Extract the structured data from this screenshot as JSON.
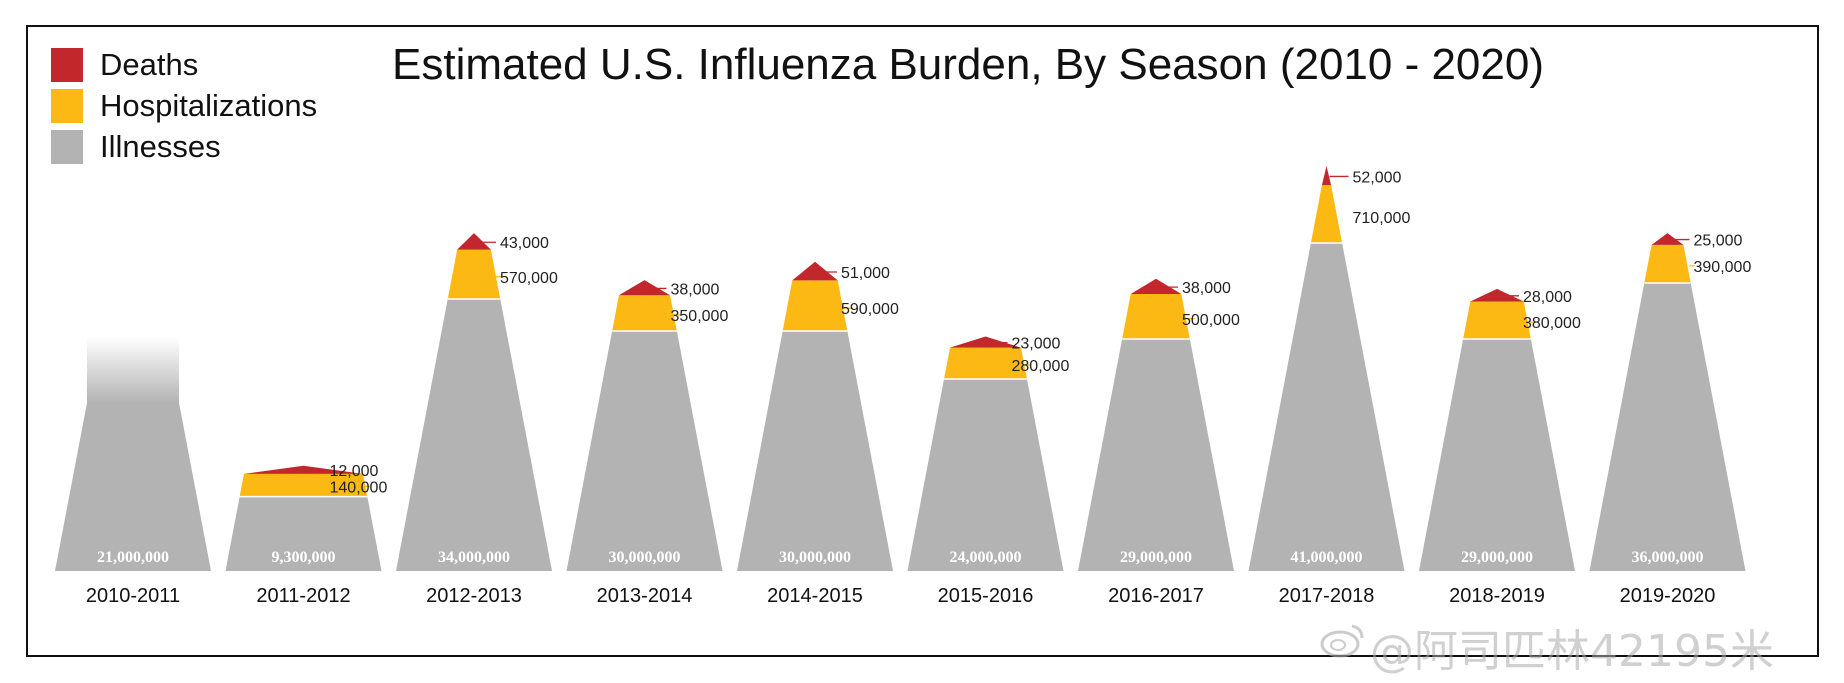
{
  "title": "Estimated U.S. Influenza Burden, By Season (2010 - 2020)",
  "legend": [
    {
      "label": "Deaths",
      "color": "#c1272d"
    },
    {
      "label": "Hospitalizations",
      "color": "#fdb913"
    },
    {
      "label": "Illnesses",
      "color": "#b3b3b3"
    }
  ],
  "watermark": "@阿司匹林42195米",
  "chart_data": {
    "type": "area",
    "categories": [
      "2010-2011",
      "2011-2012",
      "2012-2013",
      "2013-2014",
      "2014-2015",
      "2015-2016",
      "2016-2017",
      "2017-2018",
      "2018-2019",
      "2019-2020"
    ],
    "series": [
      {
        "name": "Illnesses",
        "values": [
          21000000,
          9300000,
          34000000,
          30000000,
          30000000,
          24000000,
          29000000,
          41000000,
          29000000,
          36000000
        ],
        "labels": [
          "21,000,000",
          "9,300,000",
          "34,000,000",
          "30,000,000",
          "30,000,000",
          "24,000,000",
          "29,000,000",
          "41,000,000",
          "29,000,000",
          "36,000,000"
        ]
      },
      {
        "name": "Hospitalizations",
        "values": [
          null,
          140000,
          570000,
          350000,
          590000,
          280000,
          500000,
          710000,
          380000,
          390000
        ],
        "labels": [
          "",
          "140,000",
          "570,000",
          "350,000",
          "590,000",
          "280,000",
          "500,000",
          "710,000",
          "380,000",
          "390,000"
        ]
      },
      {
        "name": "Deaths",
        "values": [
          null,
          12000,
          43000,
          38000,
          51000,
          23000,
          38000,
          52000,
          28000,
          25000
        ],
        "labels": [
          "",
          "12,000",
          "43,000",
          "38,000",
          "51,000",
          "23,000",
          "38,000",
          "52,000",
          "28,000",
          "25,000"
        ]
      }
    ],
    "colors": {
      "illness": "#b3b3b3",
      "hospitalization": "#fdb913",
      "death": "#c1272d",
      "leader": "#c1272d",
      "leader_hosp": "#fdb913"
    },
    "legend_position": "top-left",
    "grid": false
  }
}
